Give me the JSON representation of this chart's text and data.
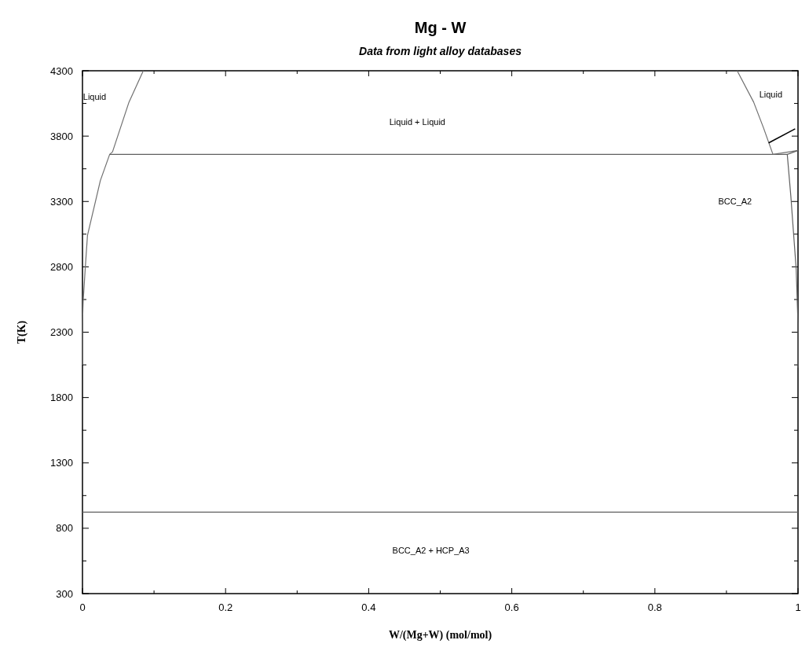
{
  "chart_data": {
    "type": "line",
    "title": "Mg - W",
    "subtitle": "Data from light alloy databases",
    "xlabel": "W/(Mg+W) (mol/mol)",
    "ylabel": "T(K)",
    "xlim": [
      0,
      1
    ],
    "xticks": [
      0,
      {
        "value": 0.1,
        "label": null
      },
      0.2,
      {
        "value": 0.3,
        "label": null
      },
      0.4,
      {
        "value": 0.5,
        "label": null
      },
      0.6,
      {
        "value": 0.7,
        "label": null
      },
      0.8,
      {
        "value": 0.9,
        "label": null
      },
      1
    ],
    "ylim": [
      300,
      4300
    ],
    "yticks": [
      300,
      {
        "value": 550,
        "label": null
      },
      800,
      {
        "value": 1050,
        "label": null
      },
      1300,
      {
        "value": 1550,
        "label": null
      },
      1800,
      {
        "value": 2050,
        "label": null
      },
      2300,
      {
        "value": 2550,
        "label": null
      },
      2800,
      {
        "value": 3050,
        "label": null
      },
      3300,
      {
        "value": 3550,
        "label": null
      },
      3800,
      {
        "value": 4050,
        "label": null
      },
      4300
    ],
    "series": [
      {
        "color": "#707070",
        "x": [
          0,
          0,
          0.001,
          0.004,
          0.007,
          0.013,
          0.025,
          0.038,
          0.042,
          0.065,
          0.085
        ],
        "values": [
          2050,
          2360,
          2540,
          2800,
          3040,
          3180,
          3460,
          3660,
          3680,
          4060,
          4300
        ]
      },
      {
        "color": "#606060",
        "x": [
          0.038,
          0.985
        ],
        "values": [
          3660,
          3660
        ]
      },
      {
        "color": "#707070",
        "x": [
          0.915,
          0.938,
          0.952,
          0.965
        ],
        "values": [
          4300,
          4060,
          3860,
          3660
        ]
      },
      {
        "color": "#707070",
        "x": [
          0.965,
          1
        ],
        "values": [
          3660,
          3690
        ]
      },
      {
        "color": "#606060",
        "x": [
          1,
          0.985,
          0.99,
          0.994,
          0.9975,
          1,
          1
        ],
        "values": [
          3690,
          3660,
          3340,
          3040,
          2780,
          2360,
          2030
        ]
      },
      {
        "color": "#606060",
        "x": [
          0,
          1
        ],
        "values": [
          923,
          923
        ]
      }
    ],
    "annotations": [
      "Liquid",
      "Liquid + Liquid",
      "Liquid",
      "BCC_A2",
      "BCC_A2 + HCP_A3"
    ]
  }
}
